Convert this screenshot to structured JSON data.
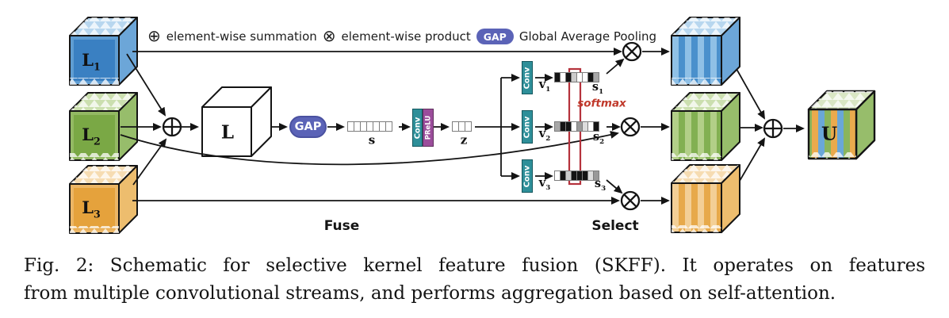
{
  "legend": {
    "sum_symbol": "⊕",
    "sum_label": "element-wise summation",
    "product_symbol": "⊗",
    "product_label": "element-wise product",
    "gap_badge": "GAP",
    "gap_label": "Global Average Pooling"
  },
  "nodes": {
    "l1": {
      "base": "L",
      "sub": "1"
    },
    "l2": {
      "base": "L",
      "sub": "2"
    },
    "l3": {
      "base": "L",
      "sub": "3"
    },
    "fused": "L",
    "gap": "GAP",
    "s": "s",
    "conv": "Conv",
    "prelu": "PReLU",
    "z": "z",
    "v1": {
      "base": "v",
      "sub": "1"
    },
    "v2": {
      "base": "v",
      "sub": "2"
    },
    "v3": {
      "base": "v",
      "sub": "3"
    },
    "s1": {
      "base": "s",
      "sub": "1"
    },
    "s2": {
      "base": "s",
      "sub": "2"
    },
    "s3": {
      "base": "s",
      "sub": "3"
    },
    "softmax": "softmax",
    "u": "U"
  },
  "stage_labels": {
    "fuse": "Fuse",
    "select": "Select"
  },
  "vectors": {
    "s_cells": [
      "#ffffff",
      "#ffffff",
      "#ffffff",
      "#ffffff",
      "#ffffff",
      "#ffffff",
      "#ffffff"
    ],
    "z_cells": [
      "#ffffff",
      "#ffffff",
      "#ffffff"
    ],
    "s1_cells": [
      "#141414",
      "#ffffff",
      "#141414",
      "#cccccc",
      "#ffffff",
      "#ffffff",
      "#141414",
      "#a8a8a8"
    ],
    "s2_cells": [
      "#a8a8a8",
      "#141414",
      "#141414",
      "#ffffff",
      "#999999",
      "#dddddd",
      "#ffffff",
      "#141414"
    ],
    "s3_cells": [
      "#ffffff",
      "#141414",
      "#cccccc",
      "#141414",
      "#141414",
      "#141414",
      "#dddddd",
      "#999999"
    ]
  },
  "colors": {
    "stream1_blue": "#3a80c2",
    "stream2_green": "#7aa845",
    "stream3_orange": "#e5a23c",
    "gap_pill": "#5b63b7",
    "conv_block": "#2e8f99",
    "prelu_block": "#9b4d9b",
    "softmax_red": "#b5323c"
  },
  "caption": {
    "line1": "Fig. 2: Schematic for selective kernel feature fusion (SKFF). It operates on features",
    "line2": "from multiple convolutional streams, and performs aggregation based on self-attention."
  }
}
